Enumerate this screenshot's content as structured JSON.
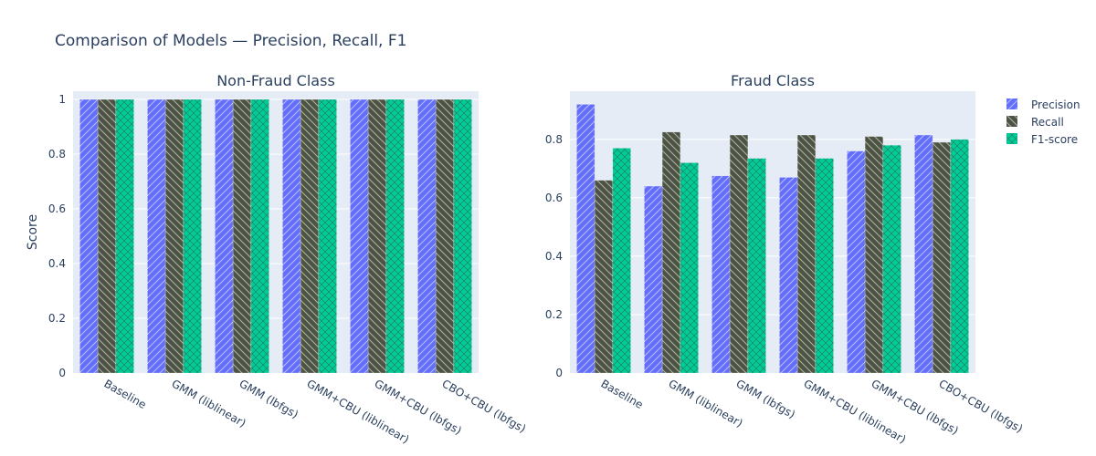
{
  "title": "Comparison of Models — Precision, Recall, F1",
  "colors": {
    "Precision": "#636efa",
    "Recall": "#4d5443",
    "F1-score": "#00cc96",
    "plot_bg": "#e5ecf6",
    "text": "#2a3f5f",
    "grid": "#ffffff"
  },
  "legend": [
    "Precision",
    "Recall",
    "F1-score"
  ],
  "chart_data": [
    {
      "type": "bar",
      "title": "Non-Fraud Class",
      "ylabel": "Score",
      "ylim": [
        0,
        1.03
      ],
      "yticks": [
        0,
        0.2,
        0.4,
        0.6,
        0.8,
        1
      ],
      "ytick_labels": [
        "0",
        "0.2",
        "0.4",
        "0.6",
        "0.8",
        "1"
      ],
      "categories": [
        "Baseline",
        "GMM (liblinear)",
        "GMM (lbfgs)",
        "GMM+CBU (liblinear)",
        "GMM+CBU (lbfgs)",
        "CBO+CBU (lbfgs)"
      ],
      "series": [
        {
          "name": "Precision",
          "values": [
            1.0,
            1.0,
            1.0,
            1.0,
            1.0,
            1.0
          ]
        },
        {
          "name": "Recall",
          "values": [
            1.0,
            1.0,
            1.0,
            1.0,
            1.0,
            1.0
          ]
        },
        {
          "name": "F1-score",
          "values": [
            1.0,
            1.0,
            1.0,
            1.0,
            1.0,
            1.0
          ]
        }
      ]
    },
    {
      "type": "bar",
      "title": "Fraud Class",
      "ylabel": "",
      "ylim": [
        0,
        0.965
      ],
      "yticks": [
        0,
        0.2,
        0.4,
        0.6,
        0.8
      ],
      "ytick_labels": [
        "0",
        "0.2",
        "0.4",
        "0.6",
        "0.8"
      ],
      "categories": [
        "Baseline",
        "GMM (liblinear)",
        "GMM (lbfgs)",
        "GMM+CBU (liblinear)",
        "GMM+CBU (lbfgs)",
        "CBO+CBU (lbfgs)"
      ],
      "series": [
        {
          "name": "Precision",
          "values": [
            0.92,
            0.64,
            0.675,
            0.67,
            0.76,
            0.815
          ]
        },
        {
          "name": "Recall",
          "values": [
            0.66,
            0.825,
            0.815,
            0.815,
            0.81,
            0.79
          ]
        },
        {
          "name": "F1-score",
          "values": [
            0.77,
            0.72,
            0.735,
            0.735,
            0.78,
            0.8
          ]
        }
      ]
    }
  ]
}
